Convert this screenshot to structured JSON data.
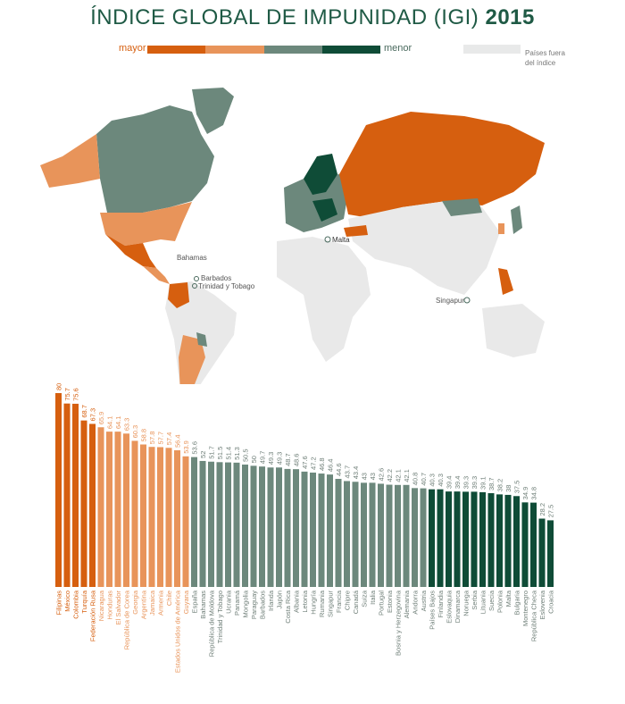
{
  "title": {
    "main": "ÍNDICE GLOBAL DE IMPUNIDAD (IGI)",
    "year": "2015"
  },
  "legend": {
    "high_label": "mayor",
    "low_label": "menor",
    "outside_label_1": "Países fuera",
    "outside_label_2": "del índice",
    "colors": [
      "#d65f0f",
      "#e8945a",
      "#6c887c",
      "#0f4c37"
    ],
    "outside_color": "#e8e9e9"
  },
  "map_labels": {
    "bahamas": "Bahamas",
    "barbados": "Barbados",
    "trinidad": "Trinidad y Tobago",
    "malta": "Malta",
    "singapur": "Singapur"
  },
  "chart_data": {
    "type": "bar",
    "title": "ÍNDICE GLOBAL DE IMPUNIDAD (IGI) 2015",
    "xlabel": "",
    "ylabel": "",
    "ylim": [
      0,
      80
    ],
    "grid": false,
    "categories": [
      "Filipinas",
      "México",
      "Colombia",
      "Turquía",
      "Federación Rusa",
      "Nicaragua",
      "Honduras",
      "El Salvador",
      "República de Corea",
      "Georgia",
      "Argentina",
      "Jamaica",
      "Armenia",
      "Chile",
      "Estados Unidos de América",
      "Guyana",
      "España",
      "Bahamas",
      "República de Moldova",
      "Trinidad y Tobago",
      "Ucrania",
      "Panamá",
      "Mongolia",
      "Paraguay",
      "Barbados",
      "Irlanda",
      "Japón",
      "Costa Rica",
      "Albania",
      "Letonia",
      "Hungría",
      "Rumania",
      "Singapur",
      "Francia",
      "Chipre",
      "Canadá",
      "Suiza",
      "Italia",
      "Portugal",
      "Estonia",
      "Bosnia y Herzegovina",
      "Alemania",
      "Andorra",
      "Austria",
      "Países Bajos",
      "Finlandia",
      "Eslovaquia",
      "Dinamarca",
      "Noruega",
      "Serbia",
      "Lituania",
      "Suecia",
      "Polonia",
      "Malta",
      "Bulgaria",
      "Montenegro",
      "República Checa",
      "Eslovenia",
      "Croacia"
    ],
    "values": [
      80,
      75.7,
      75.6,
      68.7,
      67.3,
      65.9,
      64.1,
      64.1,
      63.3,
      60.3,
      58.8,
      57.8,
      57.7,
      57.4,
      56.4,
      53.9,
      53.6,
      52,
      51.7,
      51.5,
      51.4,
      51.3,
      50.5,
      50,
      49.7,
      49.3,
      49.3,
      48.7,
      48.6,
      47.6,
      47.2,
      46.8,
      46.4,
      44.6,
      43.7,
      43.4,
      43,
      43,
      42.6,
      42.2,
      42.1,
      42.1,
      40.8,
      40.7,
      40.3,
      40.3,
      39.4,
      39.4,
      39.3,
      39.3,
      39.1,
      38.7,
      38.2,
      38,
      37.5,
      34.9,
      34.8,
      28.2,
      27.5
    ],
    "value_labels": [
      "80",
      "75.7",
      "75.6",
      "68.7",
      "67.3",
      "65.9",
      "64.1",
      "64.1",
      "63.3",
      "60.3",
      "58.8",
      "57.8",
      "57.7",
      "57.4",
      "56.4",
      "53.9",
      "53.6",
      "52",
      "51.7",
      "51.5",
      "51.4",
      "51.3",
      "50.5",
      "50",
      "49.7",
      "49.3",
      "49.3",
      "48.7",
      "48.6",
      "47.6",
      "47.2",
      "46.8",
      "46.4",
      "44.6",
      "43.7",
      "43.4",
      "43",
      "43",
      "42.6",
      "42.2",
      "42.1",
      "42.1",
      "40.8",
      "40.7",
      "40.3",
      "40.3",
      "39.4",
      "39.4",
      "39.3",
      "39.3",
      "39.1",
      "38.7",
      "38.2",
      "38",
      "37.5",
      "34.9",
      "34.8",
      "28.2",
      "27.5"
    ],
    "group": [
      0,
      0,
      0,
      0,
      0,
      1,
      1,
      1,
      1,
      1,
      1,
      1,
      1,
      1,
      1,
      1,
      2,
      2,
      2,
      2,
      2,
      2,
      2,
      2,
      2,
      2,
      2,
      2,
      2,
      2,
      2,
      2,
      2,
      2,
      2,
      2,
      2,
      2,
      2,
      2,
      2,
      2,
      2,
      2,
      3,
      3,
      3,
      3,
      3,
      3,
      3,
      3,
      3,
      3,
      3,
      3,
      3,
      3,
      3
    ]
  }
}
